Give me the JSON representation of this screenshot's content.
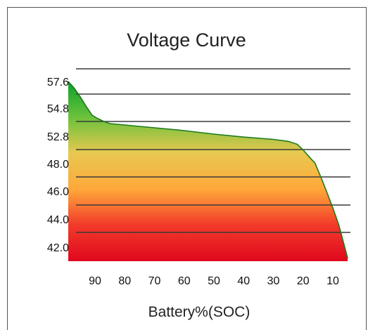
{
  "chart_data": {
    "type": "area",
    "title": "Voltage Curve",
    "xlabel": "Battery%(SOC)",
    "ylabel": "",
    "x_reversed": true,
    "x_ticks": [
      90,
      80,
      70,
      60,
      50,
      40,
      30,
      20,
      10
    ],
    "y_tick_labels": [
      "57.6",
      "54.8",
      "52.8",
      "48.0",
      "46.0",
      "44.0",
      "42.0"
    ],
    "grid": true,
    "series": [
      {
        "x": [
          99,
          97,
          95,
          93,
          91,
          89,
          87,
          85,
          80,
          70,
          60,
          50,
          40,
          30,
          25,
          22,
          20,
          18,
          16,
          14,
          12,
          10,
          8,
          7,
          6,
          5
        ],
        "y": [
          57.6,
          56.9,
          56.0,
          55.0,
          54.3,
          54.05,
          53.85,
          53.7,
          53.6,
          53.4,
          53.2,
          52.95,
          52.65,
          52.25,
          51.9,
          51.4,
          50.4,
          49.2,
          48.1,
          47.0,
          45.9,
          44.8,
          43.6,
          42.8,
          42.0,
          41.2
        ]
      }
    ],
    "fill_gradient": [
      "#0aa02a",
      "#6cc23c",
      "#e8c850",
      "#ffa83a",
      "#f23a2a",
      "#e0081e"
    ]
  }
}
